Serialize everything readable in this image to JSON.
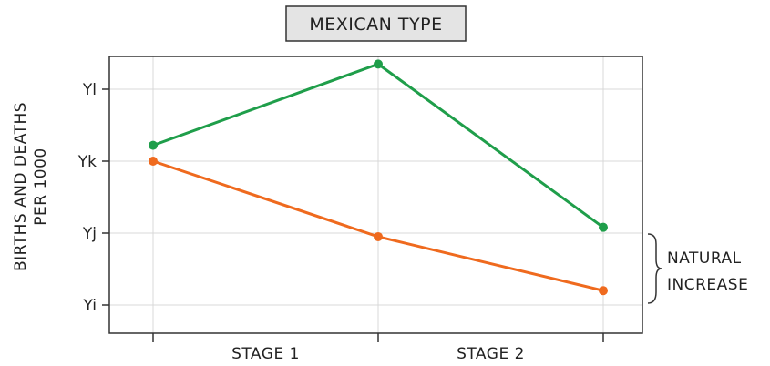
{
  "chart_data": {
    "type": "line",
    "title": "MEXICAN TYPE",
    "ylabel_lines": [
      "BIRTHS AND DEATHS",
      "PER 1000"
    ],
    "y_ticks": [
      "Yi",
      "Yj",
      "Yk",
      "Yl"
    ],
    "categories": [
      "STAGE 1",
      "STAGE 2"
    ],
    "x": [
      0,
      1,
      2
    ],
    "series": [
      {
        "color": "#1f9e4a",
        "values": [
          3.22,
          4.35,
          2.08
        ]
      },
      {
        "color": "#ef6a1e",
        "values": [
          3.0,
          1.95,
          1.2
        ]
      }
    ],
    "annotation": {
      "lines": [
        "NATURAL",
        "INCREASE"
      ]
    },
    "grid": true
  }
}
